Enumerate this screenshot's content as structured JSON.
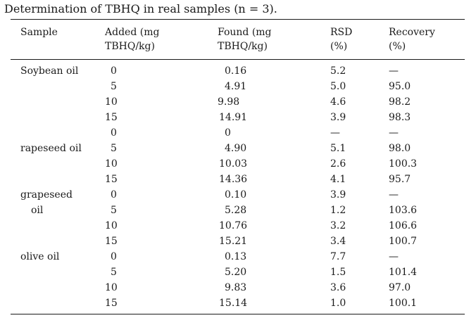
{
  "caption": "Determination of TBHQ in real samples (n = 3).",
  "columns": [
    {
      "line1": "Sample",
      "line2": ""
    },
    {
      "line1": "Added (mg",
      "line2": "TBHQ/kg)"
    },
    {
      "line1": "Found (mg",
      "line2": "TBHQ/kg)"
    },
    {
      "line1": "RSD",
      "line2": "(%)"
    },
    {
      "line1": "Recovery",
      "line2": "(%)"
    }
  ],
  "rows": [
    {
      "sample": "Soybean oil",
      "added": "0",
      "found": "0.16",
      "rsd": "5.2",
      "recovery": "—"
    },
    {
      "sample": "",
      "added": "5",
      "found": "4.91",
      "rsd": "5.0",
      "recovery": "95.0"
    },
    {
      "sample": "",
      "added": "10",
      "found": "9.98",
      "rsd": "4.6",
      "recovery": "98.2"
    },
    {
      "sample": "",
      "added": "15",
      "found": "14.91",
      "rsd": "3.9",
      "recovery": "98.3"
    },
    {
      "sample": "",
      "added": "0",
      "found": "0",
      "rsd": "—",
      "recovery": "—"
    },
    {
      "sample": "rapeseed oil",
      "added": "5",
      "found": "4.90",
      "rsd": "5.1",
      "recovery": "98.0"
    },
    {
      "sample": "",
      "added": "10",
      "found": "10.03",
      "rsd": "2.6",
      "recovery": "100.3"
    },
    {
      "sample": "",
      "added": "15",
      "found": "14.36",
      "rsd": "4.1",
      "recovery": "95.7"
    },
    {
      "sample": "grapeseed",
      "added": "0",
      "found": "0.10",
      "rsd": "3.9",
      "recovery": "—"
    },
    {
      "sample": "oil",
      "added": "5",
      "found": "5.28",
      "rsd": "1.2",
      "recovery": "103.6"
    },
    {
      "sample": "",
      "added": "10",
      "found": "10.76",
      "rsd": "3.2",
      "recovery": "106.6"
    },
    {
      "sample": "",
      "added": "15",
      "found": "15.21",
      "rsd": "3.4",
      "recovery": "100.7"
    },
    {
      "sample": "olive oil",
      "added": "0",
      "found": "0.13",
      "rsd": "7.7",
      "recovery": "—"
    },
    {
      "sample": "",
      "added": "5",
      "found": "5.20",
      "rsd": "1.5",
      "recovery": "101.4"
    },
    {
      "sample": "",
      "added": "10",
      "found": "9.83",
      "rsd": "3.6",
      "recovery": "97.0"
    },
    {
      "sample": "",
      "added": "15",
      "found": "15.14",
      "rsd": "1.0",
      "recovery": "100.1"
    }
  ]
}
